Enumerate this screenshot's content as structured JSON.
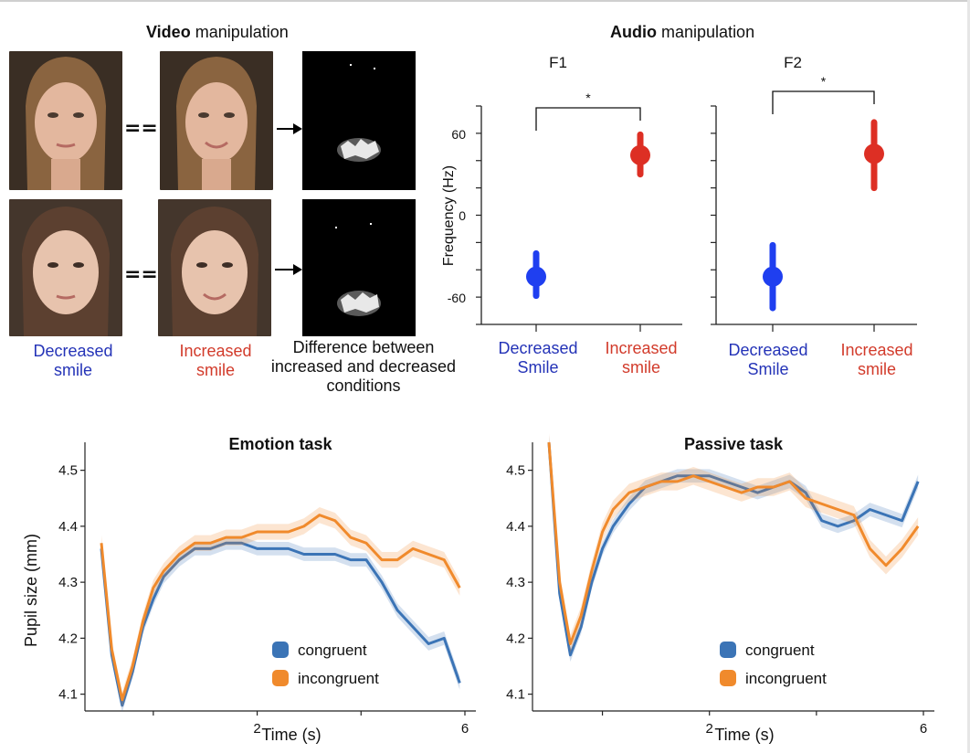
{
  "video": {
    "title_bold": "Video",
    "title_rest": "manipulation",
    "eq_symbol": "==",
    "decreased_line1": "Decreased",
    "decreased_line2": "smile",
    "increased_line1": "Increased",
    "increased_line2": "smile",
    "difference_line1": "Difference between",
    "difference_line2": "increased and decreased",
    "difference_line3": "conditions"
  },
  "audio": {
    "title_bold": "Audio",
    "title_rest": "manipulation",
    "ylabel": "Frequency (Hz)",
    "yticks": [
      "60",
      "0",
      "-60"
    ],
    "sig_marker": "*",
    "decreased_line1": "Decreased",
    "decreased_line2": "Smile",
    "increased_line1": "Increased",
    "increased_line2": "smile",
    "colors": {
      "decreased": "#1f3ff0",
      "increased": "#dd2f24"
    }
  },
  "pupil": {
    "ylabel": "Pupil size (mm)",
    "xlabel": "Time (s)",
    "yticks": [
      "4.5",
      "4.4",
      "4.3",
      "4.2",
      "4.1"
    ],
    "xticks": [
      "2",
      "6"
    ],
    "legend": {
      "congruent": "congruent",
      "incongruent": "incongruent"
    },
    "colors": {
      "congruent": "#3b74b6",
      "incongruent": "#f08a2c"
    }
  },
  "chart_data": [
    {
      "type": "scatter",
      "title": "F1",
      "categories": [
        "Decreased Smile",
        "Increased smile"
      ],
      "ylabel": "Frequency (Hz)",
      "ylim": [
        -80,
        80
      ],
      "values": [
        -45,
        44
      ],
      "error_low": [
        -59,
        30
      ],
      "error_high": [
        -28,
        59
      ],
      "significance": "*"
    },
    {
      "type": "scatter",
      "title": "F2",
      "categories": [
        "Decreased Smile",
        "Increased smile"
      ],
      "ylabel": "Frequency (Hz)",
      "ylim": [
        -80,
        80
      ],
      "values": [
        -45,
        45
      ],
      "error_low": [
        -68,
        20
      ],
      "error_high": [
        -22,
        68
      ],
      "significance": "*"
    },
    {
      "type": "line",
      "title": "Emotion task",
      "xlabel": "Time (s)",
      "ylabel": "Pupil size (mm)",
      "xlim": [
        0.0,
        7.0
      ],
      "ylim": [
        4.07,
        4.55
      ],
      "x": [
        0.0,
        0.2,
        0.4,
        0.6,
        0.8,
        1.0,
        1.2,
        1.5,
        1.8,
        2.1,
        2.4,
        2.7,
        3.0,
        3.3,
        3.6,
        3.9,
        4.2,
        4.5,
        4.8,
        5.1,
        5.4,
        5.7,
        6.0,
        6.3,
        6.6,
        6.9
      ],
      "series": [
        {
          "name": "congruent",
          "values": [
            4.36,
            4.17,
            4.08,
            4.14,
            4.22,
            4.27,
            4.31,
            4.34,
            4.36,
            4.36,
            4.37,
            4.37,
            4.36,
            4.36,
            4.36,
            4.35,
            4.35,
            4.35,
            4.34,
            4.34,
            4.3,
            4.25,
            4.22,
            4.19,
            4.2,
            4.12
          ],
          "band": 0.012
        },
        {
          "name": "incongruent",
          "values": [
            4.37,
            4.18,
            4.09,
            4.15,
            4.23,
            4.29,
            4.32,
            4.35,
            4.37,
            4.37,
            4.38,
            4.38,
            4.39,
            4.39,
            4.39,
            4.4,
            4.42,
            4.41,
            4.38,
            4.37,
            4.34,
            4.34,
            4.36,
            4.35,
            4.34,
            4.29
          ],
          "band": 0.014
        }
      ],
      "legend": "bottom-right"
    },
    {
      "type": "line",
      "title": "Passive task",
      "xlabel": "Time (s)",
      "ylabel": "Pupil size (mm)",
      "xlim": [
        0.0,
        7.0
      ],
      "ylim": [
        4.07,
        4.55
      ],
      "x": [
        0.0,
        0.2,
        0.4,
        0.6,
        0.8,
        1.0,
        1.2,
        1.5,
        1.8,
        2.1,
        2.4,
        2.7,
        3.0,
        3.3,
        3.6,
        3.9,
        4.2,
        4.5,
        4.8,
        5.1,
        5.4,
        5.7,
        6.0,
        6.3,
        6.6,
        6.9
      ],
      "series": [
        {
          "name": "congruent",
          "values": [
            4.55,
            4.28,
            4.17,
            4.22,
            4.3,
            4.36,
            4.4,
            4.44,
            4.47,
            4.48,
            4.49,
            4.49,
            4.49,
            4.48,
            4.47,
            4.46,
            4.47,
            4.48,
            4.46,
            4.41,
            4.4,
            4.41,
            4.43,
            4.42,
            4.41,
            4.48
          ],
          "band": 0.012
        },
        {
          "name": "incongruent",
          "values": [
            4.55,
            4.3,
            4.19,
            4.24,
            4.32,
            4.39,
            4.43,
            4.46,
            4.47,
            4.48,
            4.48,
            4.49,
            4.48,
            4.47,
            4.46,
            4.47,
            4.47,
            4.48,
            4.45,
            4.44,
            4.43,
            4.42,
            4.36,
            4.33,
            4.36,
            4.4
          ],
          "band": 0.016
        }
      ],
      "legend": "bottom-right"
    }
  ]
}
